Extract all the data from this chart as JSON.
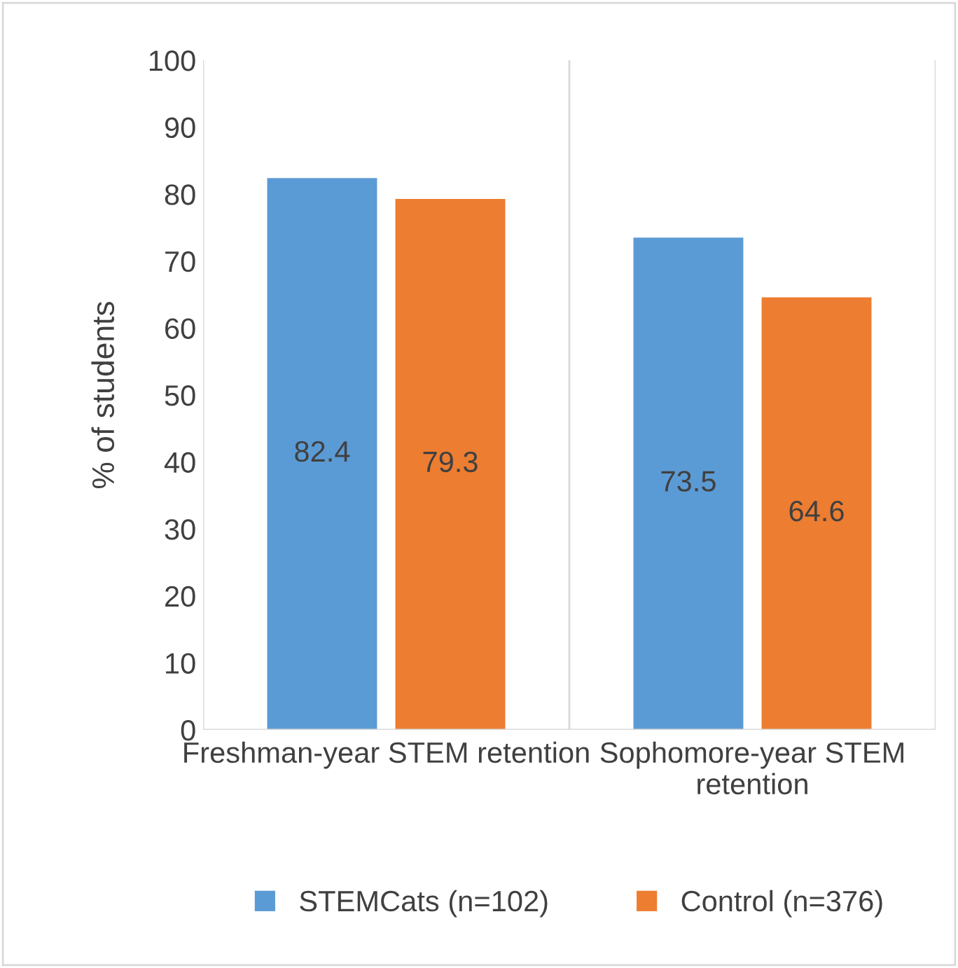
{
  "chart_data": {
    "type": "bar",
    "ylabel": "% of students",
    "categories": [
      "Freshman-year STEM retention",
      "Sophomore-year STEM retention"
    ],
    "series": [
      {
        "name": "STEMCats (n=102)",
        "color": "#5b9bd5",
        "values": [
          82.4,
          73.5
        ]
      },
      {
        "name": "Control (n=376)",
        "color": "#ed7d31",
        "values": [
          79.3,
          64.6
        ]
      }
    ],
    "ylim": [
      0,
      100
    ],
    "yticks": [
      0,
      10,
      20,
      30,
      40,
      50,
      60,
      70,
      80,
      90,
      100
    ],
    "grid": "x",
    "legend": "bottom",
    "data_labels": true
  }
}
